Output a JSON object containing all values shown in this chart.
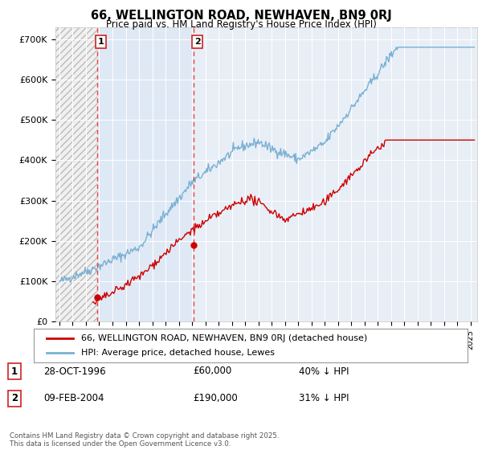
{
  "title": "66, WELLINGTON ROAD, NEWHAVEN, BN9 0RJ",
  "subtitle": "Price paid vs. HM Land Registry's House Price Index (HPI)",
  "ylim": [
    0,
    730000
  ],
  "yticks": [
    0,
    100000,
    200000,
    300000,
    400000,
    500000,
    600000,
    700000
  ],
  "ytick_labels": [
    "£0",
    "£100K",
    "£200K",
    "£300K",
    "£400K",
    "£500K",
    "£600K",
    "£700K"
  ],
  "xmin": 1993.7,
  "xmax": 2025.5,
  "red_line_color": "#cc0000",
  "blue_line_color": "#7ab0d4",
  "vline_color": "#ee4444",
  "sale1_x": 1996.82,
  "sale1_y": 60000,
  "sale1_label": "1",
  "sale1_date": "28-OCT-1996",
  "sale1_price": "£60,000",
  "sale1_hpi": "40% ↓ HPI",
  "sale2_x": 2004.1,
  "sale2_y": 190000,
  "sale2_label": "2",
  "sale2_date": "09-FEB-2004",
  "sale2_price": "£190,000",
  "sale2_hpi": "31% ↓ HPI",
  "legend1": "66, WELLINGTON ROAD, NEWHAVEN, BN9 0RJ (detached house)",
  "legend2": "HPI: Average price, detached house, Lewes",
  "footer": "Contains HM Land Registry data © Crown copyright and database right 2025.\nThis data is licensed under the Open Government Licence v3.0.",
  "background_color": "#ffffff",
  "plot_bg_color": "#e8eef6",
  "hatch_bg_color": "#f0f0f0",
  "shaded_region_color": "#dce8f5"
}
